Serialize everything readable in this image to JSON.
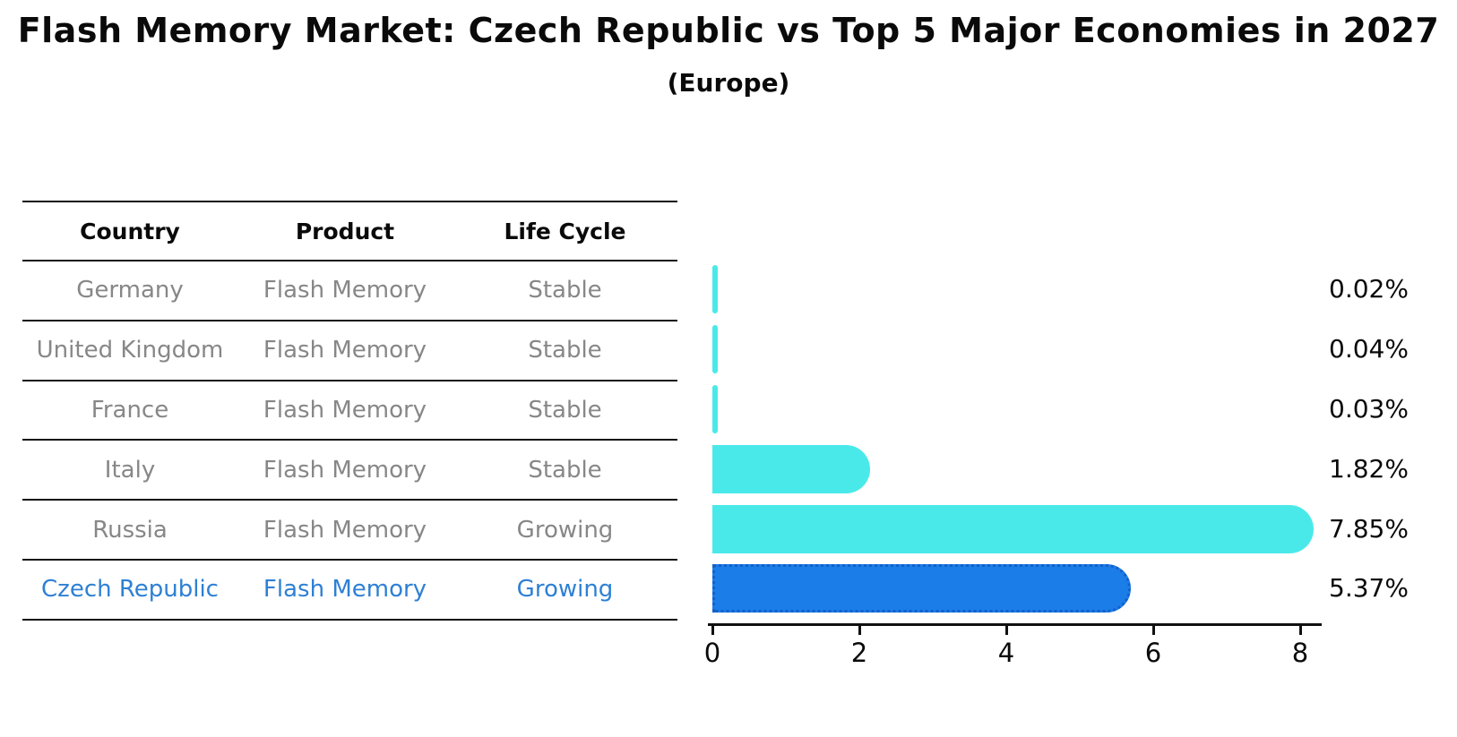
{
  "title": "Flash Memory Market: Czech Republic vs Top 5 Major Economies in 2027",
  "subtitle": "(Europe)",
  "table": {
    "headers": [
      "Country",
      "Product",
      "Life Cycle"
    ],
    "rows": [
      {
        "country": "Germany",
        "product": "Flash Memory",
        "life_cycle": "Stable",
        "highlight": false
      },
      {
        "country": "United Kingdom",
        "product": "Flash Memory",
        "life_cycle": "Stable",
        "highlight": false
      },
      {
        "country": "France",
        "product": "Flash Memory",
        "life_cycle": "Stable",
        "highlight": false
      },
      {
        "country": "Italy",
        "product": "Flash Memory",
        "life_cycle": "Stable",
        "highlight": false
      },
      {
        "country": "Russia",
        "product": "Flash Memory",
        "life_cycle": "Growing",
        "highlight": false
      },
      {
        "country": "Czech Republic",
        "product": "Flash Memory",
        "life_cycle": "Growing",
        "highlight": true
      }
    ]
  },
  "chart_data": {
    "type": "bar",
    "orientation": "horizontal",
    "title": "Flash Memory Market: Czech Republic vs Top 5 Major Economies in 2027",
    "subtitle": "(Europe)",
    "categories": [
      "Germany",
      "United Kingdom",
      "France",
      "Italy",
      "Russia",
      "Czech Republic"
    ],
    "values": [
      0.02,
      0.04,
      0.03,
      1.82,
      7.85,
      5.37
    ],
    "value_labels": [
      "0.02%",
      "0.04%",
      "0.03%",
      "1.82%",
      "7.85%",
      "5.37%"
    ],
    "xlabel": "",
    "ylabel": "",
    "xlim": [
      0,
      8
    ],
    "xticks": [
      0,
      2,
      4,
      6,
      8
    ],
    "grid": false,
    "legend": "none",
    "bar_color": "#4ae9e9",
    "highlight_color": "#1b7de8",
    "highlight_border_color": "#1261c9",
    "highlight_index": 5,
    "highlight_bar_style": "dotted-outline"
  }
}
